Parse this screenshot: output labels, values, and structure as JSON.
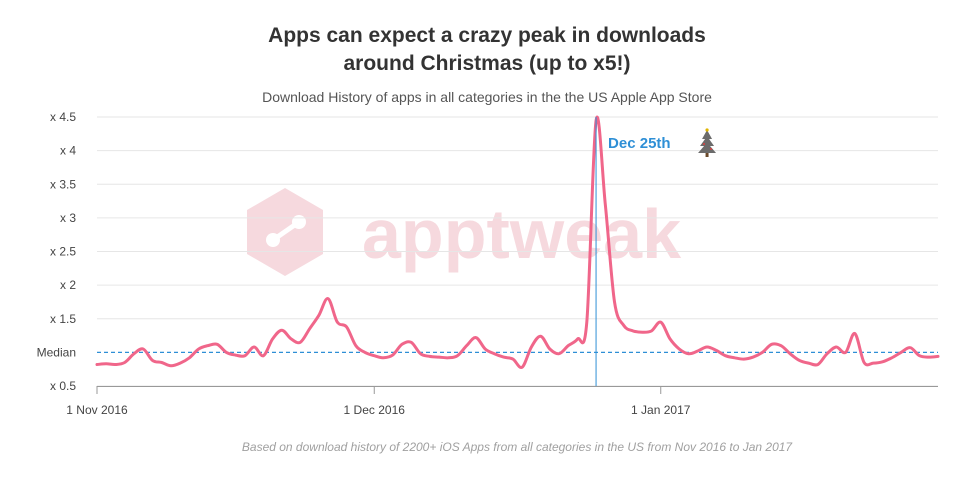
{
  "title_line1": "Apps can expect a crazy peak in downloads",
  "title_line2": "around Christmas (up to x5!)",
  "subtitle": "Download History of apps in all categories in the the US Apple App Store",
  "credit": "Based on download history of 2200+ iOS Apps from all categories in the US from Nov 2016 to Jan 2017",
  "watermark": "apptweak",
  "colors": {
    "line": "#f0668a",
    "median": "#2e8fd6",
    "grid": "#e6e6e6",
    "watermark": "#f6d9de"
  },
  "chart_data": {
    "type": "line",
    "xlim": [
      "2016-11-01",
      "2017-01-31"
    ],
    "ylim": [
      0.5,
      4.5
    ],
    "y_ticks": [
      {
        "value": 0.5,
        "label": "x 0.5"
      },
      {
        "value": 1.0,
        "label": "Median"
      },
      {
        "value": 1.5,
        "label": "x 1.5"
      },
      {
        "value": 2.0,
        "label": "x 2"
      },
      {
        "value": 2.5,
        "label": "x 2.5"
      },
      {
        "value": 3.0,
        "label": "x 3"
      },
      {
        "value": 3.5,
        "label": "x 3.5"
      },
      {
        "value": 4.0,
        "label": "x 4"
      },
      {
        "value": 4.5,
        "label": "x 4.5"
      }
    ],
    "x_ticks": [
      {
        "date": "2016-11-01",
        "label": "1 Nov 2016"
      },
      {
        "date": "2016-12-01",
        "label": "1 Dec 2016"
      },
      {
        "date": "2017-01-01",
        "label": "1 Jan 2017"
      }
    ],
    "median": 1.0,
    "grid": true,
    "annotation": {
      "date": "2016-12-25",
      "label": "Dec 25th",
      "icon": "christmas-tree-icon"
    },
    "series": [
      {
        "x": [
          "2016-11-01",
          "2016-11-02",
          "2016-11-03",
          "2016-11-04",
          "2016-11-05",
          "2016-11-06",
          "2016-11-07",
          "2016-11-08",
          "2016-11-09",
          "2016-11-10",
          "2016-11-11",
          "2016-11-12",
          "2016-11-13",
          "2016-11-14",
          "2016-11-15",
          "2016-11-16",
          "2016-11-17",
          "2016-11-18",
          "2016-11-19",
          "2016-11-20",
          "2016-11-21",
          "2016-11-22",
          "2016-11-23",
          "2016-11-24",
          "2016-11-25",
          "2016-11-26",
          "2016-11-27",
          "2016-11-28",
          "2016-11-29",
          "2016-11-30",
          "2016-12-01",
          "2016-12-02",
          "2016-12-03",
          "2016-12-04",
          "2016-12-05",
          "2016-12-06",
          "2016-12-07",
          "2016-12-08",
          "2016-12-09",
          "2016-12-10",
          "2016-12-11",
          "2016-12-12",
          "2016-12-13",
          "2016-12-14",
          "2016-12-15",
          "2016-12-16",
          "2016-12-17",
          "2016-12-18",
          "2016-12-19",
          "2016-12-20",
          "2016-12-21",
          "2016-12-22",
          "2016-12-23",
          "2016-12-24",
          "2016-12-25",
          "2016-12-26",
          "2016-12-27",
          "2016-12-28",
          "2016-12-29",
          "2016-12-30",
          "2016-12-31",
          "2017-01-01",
          "2017-01-02",
          "2017-01-03",
          "2017-01-04",
          "2017-01-05",
          "2017-01-06",
          "2017-01-07",
          "2017-01-08",
          "2017-01-09",
          "2017-01-10",
          "2017-01-11",
          "2017-01-12",
          "2017-01-13",
          "2017-01-14",
          "2017-01-15",
          "2017-01-16",
          "2017-01-17",
          "2017-01-18",
          "2017-01-19",
          "2017-01-20",
          "2017-01-21",
          "2017-01-22",
          "2017-01-23",
          "2017-01-24",
          "2017-01-25",
          "2017-01-26",
          "2017-01-27",
          "2017-01-28",
          "2017-01-29",
          "2017-01-30",
          "2017-01-31"
        ],
        "y": [
          0.82,
          0.83,
          0.82,
          0.85,
          0.98,
          1.05,
          0.88,
          0.85,
          0.8,
          0.84,
          0.92,
          1.05,
          1.1,
          1.12,
          1.0,
          0.96,
          0.95,
          1.08,
          0.95,
          1.2,
          1.33,
          1.2,
          1.15,
          1.35,
          1.55,
          1.8,
          1.45,
          1.38,
          1.1,
          1.0,
          0.95,
          0.92,
          0.96,
          1.12,
          1.15,
          0.98,
          0.94,
          0.93,
          0.92,
          0.95,
          1.1,
          1.22,
          1.05,
          0.98,
          0.93,
          0.9,
          0.78,
          1.08,
          1.24,
          1.05,
          0.98,
          1.1,
          1.2,
          1.45,
          4.45,
          3.2,
          1.75,
          1.4,
          1.32,
          1.3,
          1.32,
          1.45,
          1.2,
          1.05,
          0.98,
          1.02,
          1.08,
          1.03,
          0.95,
          0.92,
          0.9,
          0.93,
          1.0,
          1.12,
          1.1,
          0.98,
          0.88,
          0.84,
          0.82,
          0.98,
          1.08,
          1.0,
          1.28,
          0.85,
          0.84,
          0.86,
          0.92,
          1.0,
          1.07,
          0.95,
          0.93,
          0.94
        ]
      }
    ]
  }
}
